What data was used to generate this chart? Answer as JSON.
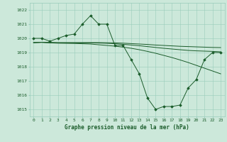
{
  "xlabel": "Graphe pression niveau de la mer (hPa)",
  "x": [
    0,
    1,
    2,
    3,
    4,
    5,
    6,
    7,
    8,
    9,
    10,
    11,
    12,
    13,
    14,
    15,
    16,
    17,
    18,
    19,
    20,
    21,
    22,
    23
  ],
  "series1": [
    1020.0,
    1020.0,
    1019.8,
    1020.0,
    1020.2,
    1020.3,
    1021.0,
    1021.6,
    1021.0,
    1021.0,
    1019.5,
    1019.5,
    1018.5,
    1017.5,
    1015.8,
    1015.0,
    1015.2,
    1015.2,
    1015.3,
    1016.5,
    1017.1,
    1018.5,
    1019.0,
    1019.0
  ],
  "trend1": [
    1019.7,
    1019.72,
    1019.68,
    1019.66,
    1019.65,
    1019.64,
    1019.62,
    1019.6,
    1019.55,
    1019.5,
    1019.45,
    1019.38,
    1019.3,
    1019.2,
    1019.08,
    1018.95,
    1018.8,
    1018.65,
    1018.48,
    1018.3,
    1018.1,
    1017.9,
    1017.7,
    1017.5
  ],
  "trend2": [
    1019.7,
    1019.72,
    1019.7,
    1019.68,
    1019.68,
    1019.68,
    1019.68,
    1019.68,
    1019.67,
    1019.65,
    1019.62,
    1019.58,
    1019.53,
    1019.48,
    1019.42,
    1019.36,
    1019.3,
    1019.25,
    1019.2,
    1019.15,
    1019.12,
    1019.1,
    1019.08,
    1019.05
  ],
  "trend3": [
    1019.7,
    1019.72,
    1019.71,
    1019.7,
    1019.7,
    1019.7,
    1019.7,
    1019.7,
    1019.7,
    1019.69,
    1019.68,
    1019.66,
    1019.63,
    1019.6,
    1019.57,
    1019.53,
    1019.5,
    1019.47,
    1019.44,
    1019.42,
    1019.4,
    1019.38,
    1019.36,
    1019.35
  ],
  "ylim": [
    1014.5,
    1022.5
  ],
  "yticks": [
    1015,
    1016,
    1017,
    1018,
    1019,
    1020,
    1021,
    1022
  ],
  "xticks": [
    0,
    1,
    2,
    3,
    4,
    5,
    6,
    7,
    8,
    9,
    10,
    11,
    12,
    13,
    14,
    15,
    16,
    17,
    18,
    19,
    20,
    21,
    22,
    23
  ],
  "xlim": [
    -0.5,
    23.5
  ],
  "bg_color": "#cce8da",
  "grid_color": "#99ccbb",
  "line_color": "#1a5c2a",
  "marker_color": "#1a5c2a",
  "tick_label_color": "#1a5c2a",
  "xlabel_color": "#1a5c2a",
  "label_fontsize": 5.5,
  "tick_fontsize": 4.5
}
